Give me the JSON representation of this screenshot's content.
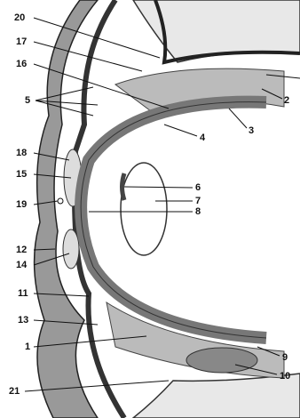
{
  "labels": [
    {
      "text": "20"
    },
    {
      "text": "17"
    },
    {
      "text": "16"
    },
    {
      "text": "5"
    },
    {
      "text": "2"
    },
    {
      "text": "3"
    },
    {
      "text": "4"
    },
    {
      "text": "18"
    },
    {
      "text": "15"
    },
    {
      "text": "19"
    },
    {
      "text": "6"
    },
    {
      "text": "7"
    },
    {
      "text": "8"
    },
    {
      "text": "12"
    },
    {
      "text": "14"
    },
    {
      "text": "11"
    },
    {
      "text": "13"
    },
    {
      "text": "1"
    },
    {
      "text": "9"
    },
    {
      "text": "10"
    },
    {
      "text": "21"
    }
  ]
}
